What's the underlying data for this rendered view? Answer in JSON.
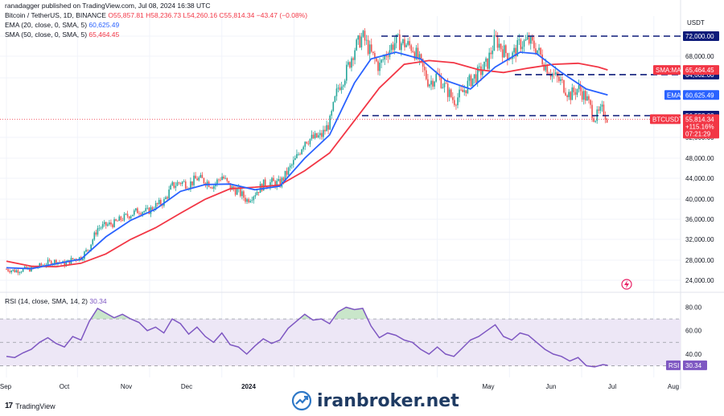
{
  "header": {
    "publisher": "ranadagger published on TradingView.com, Jul 08, 2024 16:38 UTC",
    "symbol": "Bitcoin / TetherUS, 1D, BINANCE",
    "o": "O55,857.81",
    "h": "H58,236.73",
    "l": "L54,260.16",
    "c": "C55,814.34",
    "chg": "−43.47 (−0.08%)"
  },
  "indicators": {
    "ema_label": "EMA (20, close, 0, SMA, 5)",
    "ema_value": "60,625.49",
    "sma_label": "SMA (50, close, 0, SMA, 5)",
    "sma_value": "65,464.45",
    "rsi_label": "RSI (14, close, SMA, 14, 2)",
    "rsi_value": "30.34"
  },
  "footer": {
    "brand": "TradingView",
    "logo": "17"
  },
  "watermark": {
    "text": "iranbroker.net"
  },
  "colors": {
    "up": "#26a69a",
    "down": "#ef5350",
    "ema": "#2962ff",
    "sma": "#f23645",
    "rsi": "#7e57c2",
    "level": "#0d1b7a",
    "price": "#f23645"
  },
  "chart_data": {
    "type": "candlestick",
    "currency": "USDT",
    "y_axis_ticks": [
      24000,
      28000,
      32000,
      36000,
      40000,
      44000,
      48000,
      52000,
      64000,
      68000,
      72000
    ],
    "y_axis_labels": [
      "24,000.00",
      "28,000.00",
      "32,000.00",
      "36,000.00",
      "40,000.00",
      "44,000.00",
      "48,000.00",
      "52,000.00",
      "64,000.00",
      "68,000.00",
      "72,000.00"
    ],
    "x_axis_labels": [
      "Sep",
      "Oct",
      "Nov",
      "Dec",
      "2024",
      "May",
      "Jun",
      "Jul",
      "Aug"
    ],
    "horizontal_levels": [
      {
        "value": 72000,
        "label": "72,000.00"
      },
      {
        "value": 64602,
        "label": "64,602.00"
      },
      {
        "value": 56552,
        "label": "56,552.00"
      }
    ],
    "price_tags": {
      "sma_tag": "SMA:MA",
      "sma_value": "65,464.45",
      "ema_tag": "EMA",
      "ema_value": "60,625.49",
      "price_tag": "BTCUSDT",
      "price_value": "55,814.34",
      "price_sub1": "+115.16%",
      "price_sub2": "07:21:29"
    },
    "close_path": [
      [
        0,
        26200
      ],
      [
        7,
        25900
      ],
      [
        14,
        26100
      ],
      [
        21,
        26300
      ],
      [
        28,
        26800
      ],
      [
        35,
        27500
      ],
      [
        42,
        27800
      ],
      [
        49,
        27200
      ],
      [
        56,
        28200
      ],
      [
        63,
        28500
      ],
      [
        70,
        30500
      ],
      [
        77,
        34200
      ],
      [
        84,
        34800
      ],
      [
        91,
        35200
      ],
      [
        98,
        36200
      ],
      [
        105,
        37000
      ],
      [
        112,
        37800
      ],
      [
        119,
        37500
      ],
      [
        126,
        38700
      ],
      [
        133,
        39500
      ],
      [
        140,
        42500
      ],
      [
        147,
        43300
      ],
      [
        154,
        42800
      ],
      [
        161,
        44000
      ],
      [
        168,
        43500
      ],
      [
        175,
        42600
      ],
      [
        182,
        44500
      ],
      [
        189,
        42200
      ],
      [
        196,
        41500
      ],
      [
        203,
        39800
      ],
      [
        210,
        41200
      ],
      [
        217,
        42800
      ],
      [
        224,
        43200
      ],
      [
        231,
        42900
      ],
      [
        238,
        45500
      ],
      [
        245,
        48000
      ],
      [
        252,
        51500
      ],
      [
        259,
        51800
      ],
      [
        266,
        52300
      ],
      [
        273,
        55000
      ],
      [
        280,
        62000
      ],
      [
        287,
        65000
      ],
      [
        294,
        69500
      ],
      [
        301,
        72000
      ],
      [
        308,
        68500
      ],
      [
        315,
        66000
      ],
      [
        322,
        69000
      ],
      [
        329,
        71000
      ],
      [
        336,
        70500
      ],
      [
        343,
        69800
      ],
      [
        350,
        66500
      ],
      [
        357,
        63000
      ],
      [
        364,
        64500
      ],
      [
        371,
        62000
      ],
      [
        378,
        59500
      ],
      [
        385,
        61000
      ],
      [
        392,
        63500
      ],
      [
        399,
        64800
      ],
      [
        406,
        66500
      ],
      [
        413,
        71500
      ],
      [
        420,
        69000
      ],
      [
        427,
        68000
      ],
      [
        434,
        70500
      ],
      [
        441,
        71000
      ],
      [
        448,
        69500
      ],
      [
        455,
        66500
      ],
      [
        462,
        64500
      ],
      [
        469,
        63000
      ],
      [
        476,
        60500
      ],
      [
        483,
        62000
      ],
      [
        490,
        60000
      ],
      [
        497,
        56000
      ],
      [
        504,
        57800
      ],
      [
        508,
        55814
      ]
    ],
    "ema20": [
      [
        0,
        26500
      ],
      [
        21,
        26300
      ],
      [
        42,
        27300
      ],
      [
        63,
        28200
      ],
      [
        84,
        32500
      ],
      [
        105,
        35800
      ],
      [
        126,
        38000
      ],
      [
        147,
        41500
      ],
      [
        168,
        42800
      ],
      [
        189,
        42900
      ],
      [
        210,
        41800
      ],
      [
        231,
        42500
      ],
      [
        252,
        48000
      ],
      [
        273,
        52500
      ],
      [
        294,
        63000
      ],
      [
        308,
        67500
      ],
      [
        329,
        68800
      ],
      [
        350,
        67500
      ],
      [
        371,
        63500
      ],
      [
        392,
        61800
      ],
      [
        413,
        66000
      ],
      [
        434,
        68800
      ],
      [
        448,
        68500
      ],
      [
        469,
        65000
      ],
      [
        490,
        61800
      ],
      [
        508,
        60625
      ]
    ],
    "sma50": [
      [
        0,
        27800
      ],
      [
        21,
        26800
      ],
      [
        42,
        26700
      ],
      [
        63,
        27400
      ],
      [
        84,
        29200
      ],
      [
        105,
        32000
      ],
      [
        126,
        34300
      ],
      [
        147,
        37200
      ],
      [
        168,
        40000
      ],
      [
        189,
        42000
      ],
      [
        210,
        42300
      ],
      [
        231,
        42700
      ],
      [
        252,
        45500
      ],
      [
        273,
        49000
      ],
      [
        294,
        55500
      ],
      [
        315,
        62000
      ],
      [
        336,
        66500
      ],
      [
        357,
        67200
      ],
      [
        378,
        66800
      ],
      [
        399,
        65500
      ],
      [
        420,
        65000
      ],
      [
        441,
        65800
      ],
      [
        462,
        66500
      ],
      [
        483,
        66700
      ],
      [
        500,
        66000
      ],
      [
        508,
        65464
      ]
    ],
    "rsi": {
      "ticks": [
        40,
        60,
        80
      ],
      "tick_labels": [
        "40.00",
        "60.00",
        "80.00"
      ],
      "band": [
        30,
        70
      ],
      "values": [
        [
          0,
          38
        ],
        [
          7,
          37
        ],
        [
          14,
          41
        ],
        [
          21,
          44
        ],
        [
          28,
          50
        ],
        [
          35,
          54
        ],
        [
          42,
          49
        ],
        [
          49,
          46
        ],
        [
          56,
          55
        ],
        [
          63,
          52
        ],
        [
          70,
          68
        ],
        [
          77,
          79
        ],
        [
          84,
          75
        ],
        [
          91,
          71
        ],
        [
          98,
          74
        ],
        [
          105,
          70
        ],
        [
          112,
          67
        ],
        [
          119,
          60
        ],
        [
          126,
          63
        ],
        [
          133,
          58
        ],
        [
          140,
          70
        ],
        [
          147,
          66
        ],
        [
          154,
          57
        ],
        [
          161,
          63
        ],
        [
          168,
          55
        ],
        [
          175,
          50
        ],
        [
          182,
          58
        ],
        [
          189,
          48
        ],
        [
          196,
          46
        ],
        [
          203,
          40
        ],
        [
          210,
          47
        ],
        [
          217,
          53
        ],
        [
          224,
          49
        ],
        [
          231,
          52
        ],
        [
          238,
          62
        ],
        [
          245,
          68
        ],
        [
          252,
          74
        ],
        [
          259,
          69
        ],
        [
          266,
          70
        ],
        [
          273,
          66
        ],
        [
          280,
          76
        ],
        [
          287,
          80
        ],
        [
          294,
          78
        ],
        [
          301,
          79
        ],
        [
          308,
          64
        ],
        [
          315,
          54
        ],
        [
          322,
          58
        ],
        [
          329,
          56
        ],
        [
          336,
          52
        ],
        [
          343,
          50
        ],
        [
          350,
          44
        ],
        [
          357,
          40
        ],
        [
          364,
          46
        ],
        [
          371,
          40
        ],
        [
          378,
          38
        ],
        [
          385,
          45
        ],
        [
          392,
          52
        ],
        [
          399,
          55
        ],
        [
          406,
          60
        ],
        [
          413,
          65
        ],
        [
          420,
          55
        ],
        [
          427,
          52
        ],
        [
          434,
          58
        ],
        [
          441,
          56
        ],
        [
          448,
          50
        ],
        [
          455,
          44
        ],
        [
          462,
          40
        ],
        [
          469,
          38
        ],
        [
          476,
          34
        ],
        [
          483,
          37
        ],
        [
          490,
          30
        ],
        [
          497,
          29
        ],
        [
          504,
          31
        ],
        [
          508,
          30.34
        ]
      ]
    }
  }
}
